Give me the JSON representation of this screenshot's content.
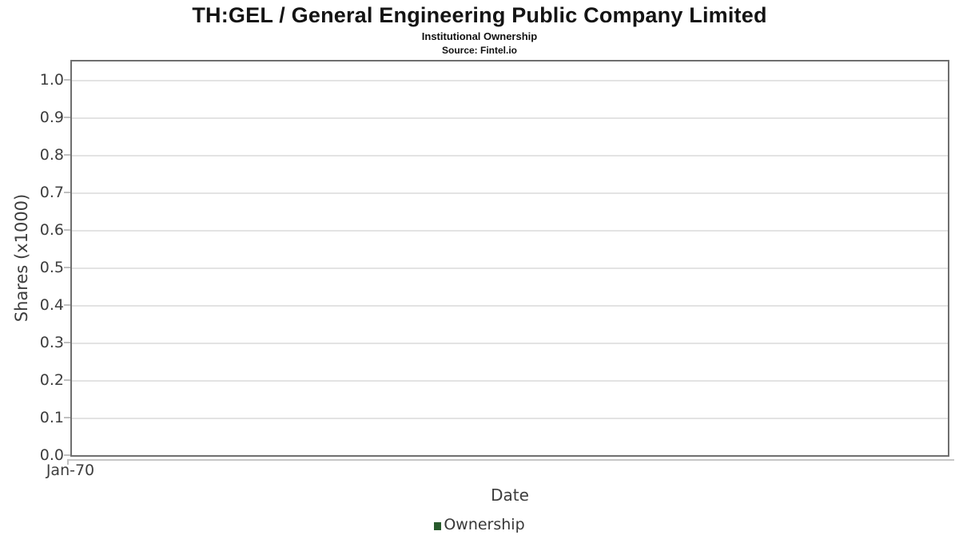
{
  "header": {
    "title": "TH:GEL / General Engineering Public Company Limited",
    "subtitle": "Institutional Ownership",
    "source": "Source: Fintel.io"
  },
  "chart_data": {
    "type": "line",
    "title": "TH:GEL / General Engineering Public Company Limited",
    "subtitle": "Institutional Ownership",
    "source": "Source: Fintel.io",
    "xlabel": "Date",
    "ylabel": "Shares (x1000)",
    "x_tick_labels": [
      "Jan-70"
    ],
    "y_tick_labels": [
      "0.0",
      "0.1",
      "0.2",
      "0.3",
      "0.4",
      "0.5",
      "0.6",
      "0.7",
      "0.8",
      "0.9",
      "1.0"
    ],
    "ylim": [
      0.0,
      1.05
    ],
    "grid": true,
    "legend": {
      "position": "bottom",
      "entries": [
        {
          "label": "Ownership",
          "color": "#275a2c"
        }
      ]
    },
    "series": [
      {
        "name": "Ownership",
        "x": [],
        "y": []
      }
    ],
    "note": "chart area is empty - no data points plotted"
  },
  "colors": {
    "legend_green": "#275a2c",
    "plot_border": "#6f6f6f",
    "gridline": "#e3e3e3",
    "axis_text": "#3d3d3d"
  }
}
